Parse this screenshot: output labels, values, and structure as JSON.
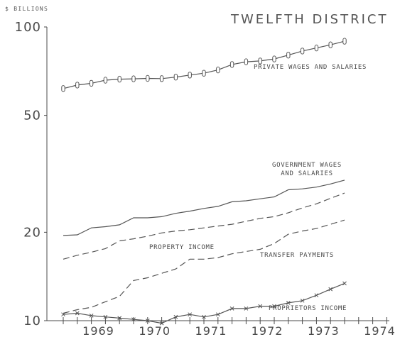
{
  "chart_data": {
    "type": "line",
    "title": "TWELFTH DISTRICT",
    "xlabel": "",
    "ylabel": "$ BILLIONS",
    "y_scale": "log",
    "ylim": [
      10,
      100
    ],
    "y_ticks": [
      10,
      20,
      50,
      100
    ],
    "x_ticks": [
      "1969",
      "1970",
      "1971",
      "1972",
      "1973",
      "1974"
    ],
    "grid": false,
    "legend": "inline labels",
    "x": [
      "1968 Q4",
      "1969 Q1",
      "1969 Q2",
      "1969 Q3",
      "1969 Q4",
      "1970 Q1",
      "1970 Q2",
      "1970 Q3",
      "1970 Q4",
      "1971 Q1",
      "1971 Q2",
      "1971 Q3",
      "1971 Q4",
      "1972 Q1",
      "1972 Q2",
      "1972 Q3",
      "1972 Q4",
      "1973 Q1",
      "1973 Q2",
      "1973 Q3",
      "1973 Q4"
    ],
    "series": [
      {
        "name": "PRIVATE WAGES AND SALARIES",
        "label_lines": [
          "PRIVATE WAGES AND SALARIES"
        ],
        "values": [
          61.7,
          63.4,
          64.3,
          65.9,
          66.4,
          66.6,
          66.8,
          66.7,
          67.5,
          68.6,
          69.6,
          71.4,
          74.5,
          76.1,
          76.6,
          77.8,
          80.2,
          82.8,
          84.8,
          86.9,
          89.4
        ]
      },
      {
        "name": "GOVERNMENT WAGES AND SALARIES",
        "label_lines": [
          "GOVERNMENT WAGES",
          "AND SALARIES"
        ],
        "values": [
          19.5,
          19.6,
          20.7,
          20.9,
          21.2,
          22.4,
          22.4,
          22.6,
          23.2,
          23.6,
          24.1,
          24.5,
          25.4,
          25.6,
          26.0,
          26.4,
          27.9,
          28.1,
          28.5,
          29.2,
          30.1
        ]
      },
      {
        "name": "PROPERTY INCOME",
        "label_lines": [
          "PROPERTY INCOME"
        ],
        "values": [
          16.2,
          16.7,
          17.1,
          17.6,
          18.7,
          19.0,
          19.4,
          19.9,
          20.2,
          20.4,
          20.7,
          21.0,
          21.3,
          21.8,
          22.3,
          22.6,
          23.3,
          24.2,
          25.0,
          26.1,
          27.2
        ]
      },
      {
        "name": "TRANSFER PAYMENTS",
        "label_lines": [
          "TRANSFER PAYMENTS"
        ],
        "values": [
          10.6,
          10.9,
          11.1,
          11.6,
          12.1,
          13.7,
          14.0,
          14.5,
          15.0,
          16.2,
          16.2,
          16.4,
          16.9,
          17.2,
          17.5,
          18.3,
          19.7,
          20.2,
          20.6,
          21.3,
          22.0
        ]
      },
      {
        "name": "PROPRIETORS INCOME",
        "label_lines": [
          "PROPRIETORS INCOME"
        ],
        "values": [
          10.5,
          10.6,
          10.4,
          10.3,
          10.2,
          10.1,
          10.0,
          9.8,
          10.3,
          10.5,
          10.3,
          10.5,
          11.0,
          11.0,
          11.2,
          11.2,
          11.5,
          11.7,
          12.2,
          12.8,
          13.4
        ]
      }
    ]
  }
}
